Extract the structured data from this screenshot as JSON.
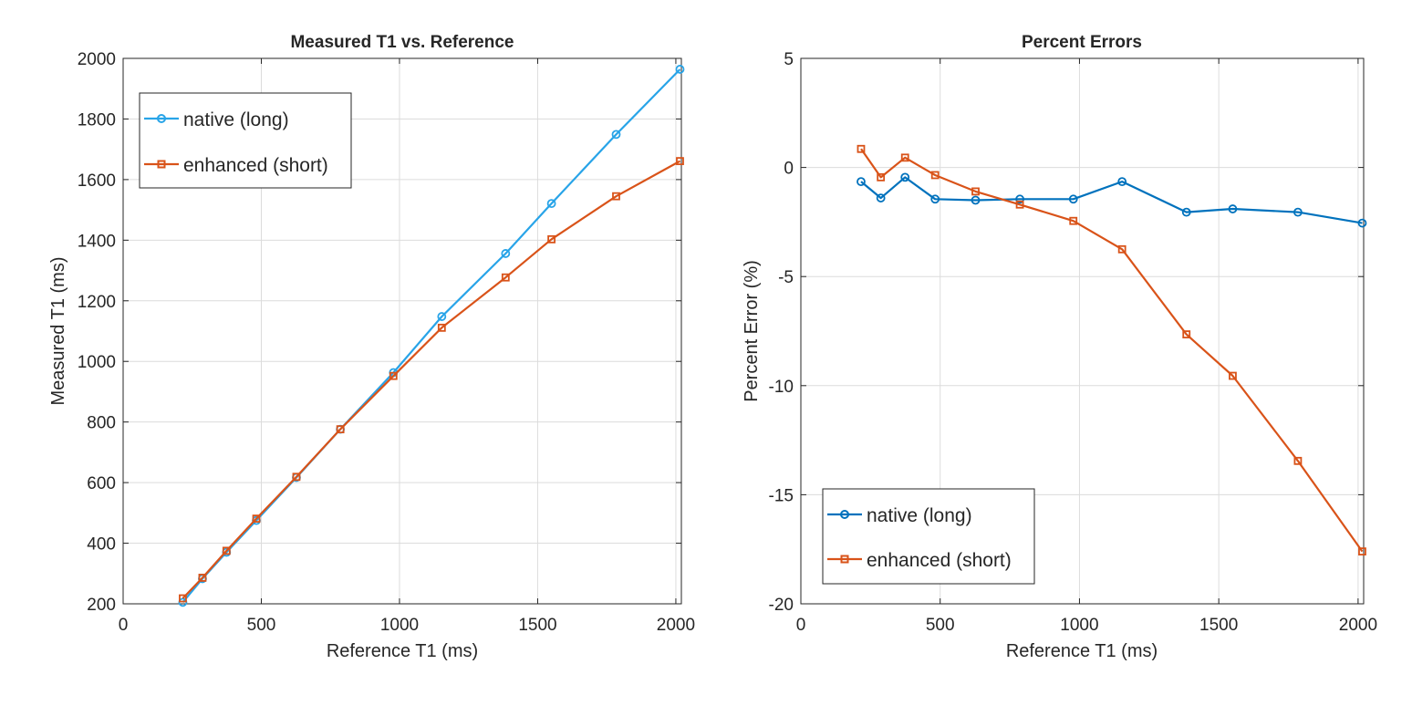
{
  "chart_data": [
    {
      "type": "line",
      "title": "Measured T1 vs. Reference",
      "xlabel": "Reference T1 (ms)",
      "ylabel": "Measured T1 (ms)",
      "xlim": [
        0,
        2020
      ],
      "ylim": [
        200,
        2000
      ],
      "xticks": [
        0,
        500,
        1000,
        1500,
        2000
      ],
      "xtick_labels": [
        "0",
        "500",
        "1000",
        "1500",
        "2000"
      ],
      "yticks": [
        200,
        400,
        600,
        800,
        1000,
        1200,
        1400,
        1600,
        1800,
        2000
      ],
      "ytick_labels": [
        "200",
        "400",
        "600",
        "800",
        "1000",
        "1200",
        "1400",
        "1600",
        "1800",
        "2000"
      ],
      "grid": true,
      "legend_position": "top-left",
      "x": [
        216,
        287,
        374,
        482,
        627,
        786,
        978,
        1153,
        1384,
        1550,
        1784,
        2015
      ],
      "series": [
        {
          "name": "native (long)",
          "color": "#28A4E8",
          "marker": "circle",
          "values": [
            205,
            283,
            370,
            475,
            617,
            776,
            963,
            1148,
            1356,
            1521,
            1749,
            1964
          ]
        },
        {
          "name": "enhanced (short)",
          "color": "#D95319",
          "marker": "square",
          "values": [
            218,
            286,
            375,
            481,
            619,
            776,
            952,
            1111,
            1277,
            1403,
            1545,
            1661
          ]
        }
      ]
    },
    {
      "type": "line",
      "title": "Percent Errors",
      "xlabel": "Reference T1 (ms)",
      "ylabel": "Percent Error (%)",
      "xlim": [
        0,
        2020
      ],
      "ylim": [
        -20,
        5
      ],
      "xticks": [
        0,
        500,
        1000,
        1500,
        2000
      ],
      "xtick_labels": [
        "0",
        "500",
        "1000",
        "1500",
        "2000"
      ],
      "yticks": [
        -20,
        -15,
        -10,
        -5,
        0,
        5
      ],
      "ytick_labels": [
        "-20",
        "-15",
        "-10",
        "-5",
        "0",
        "5"
      ],
      "grid": true,
      "legend_position": "bottom-left",
      "x": [
        216,
        287,
        374,
        482,
        627,
        786,
        978,
        1153,
        1384,
        1550,
        1784,
        2015
      ],
      "series": [
        {
          "name": "native (long)",
          "color": "#0072BD",
          "marker": "circle",
          "values": [
            -0.65,
            -1.4,
            -0.45,
            -1.45,
            -1.5,
            -1.45,
            -1.45,
            -0.65,
            -2.05,
            -1.9,
            -2.05,
            -2.55
          ]
        },
        {
          "name": "enhanced (short)",
          "color": "#D95319",
          "marker": "square",
          "values": [
            0.85,
            -0.45,
            0.45,
            -0.35,
            -1.1,
            -1.7,
            -2.45,
            -3.75,
            -7.65,
            -9.55,
            -13.45,
            -17.6
          ]
        }
      ]
    }
  ]
}
